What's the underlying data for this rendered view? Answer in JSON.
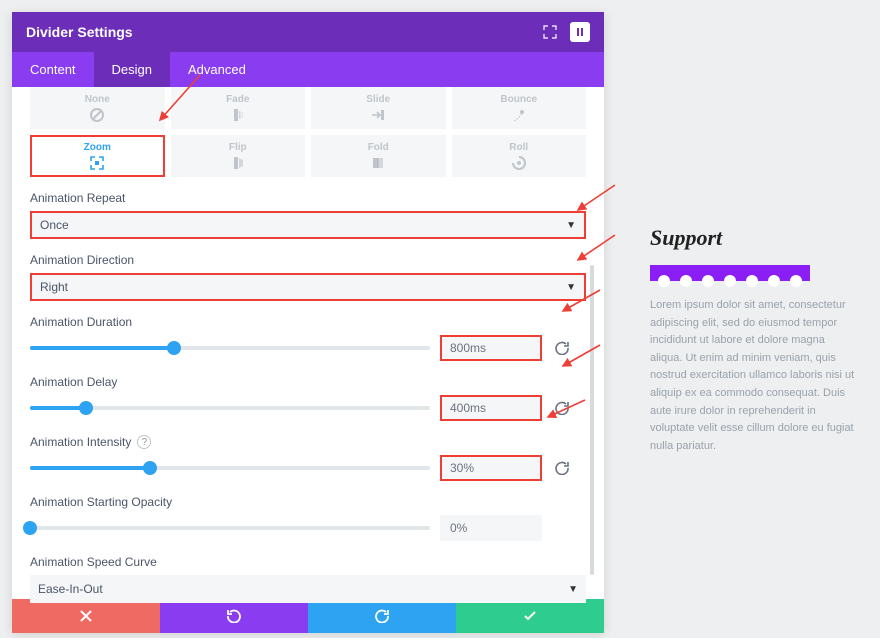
{
  "colors": {
    "panel_header_bg": "#6c2eb9",
    "tabs_bg": "#8a3df0",
    "highlight_border": "#ef3e36",
    "accent_blue": "#2ea3f2",
    "card_bg": "#f5f6f7",
    "muted_text": "#bfc5cb",
    "body_bg": "#edeff0",
    "footer_red": "#ef6a63",
    "footer_purple": "#8a3df0",
    "footer_blue": "#2ea3f2",
    "footer_green": "#2ecc8f",
    "divider_purple": "#8a1ef5"
  },
  "panel": {
    "title": "Divider Settings",
    "tabs": [
      "Content",
      "Design",
      "Advanced"
    ],
    "active_tab": "Design"
  },
  "animation_styles": {
    "row1": [
      {
        "key": "none",
        "label": "None"
      },
      {
        "key": "fade",
        "label": "Fade"
      },
      {
        "key": "slide",
        "label": "Slide"
      },
      {
        "key": "bounce",
        "label": "Bounce"
      }
    ],
    "row2": [
      {
        "key": "zoom",
        "label": "Zoom",
        "selected": true
      },
      {
        "key": "flip",
        "label": "Flip"
      },
      {
        "key": "fold",
        "label": "Fold"
      },
      {
        "key": "roll",
        "label": "Roll"
      }
    ]
  },
  "fields": {
    "repeat": {
      "label": "Animation Repeat",
      "value": "Once",
      "highlight": true
    },
    "direction": {
      "label": "Animation Direction",
      "value": "Right",
      "highlight": true
    },
    "duration": {
      "label": "Animation Duration",
      "value": "800ms",
      "percent": 36,
      "highlight": true
    },
    "delay": {
      "label": "Animation Delay",
      "value": "400ms",
      "percent": 14,
      "highlight": true
    },
    "intensity": {
      "label": "Animation Intensity",
      "value": "30%",
      "percent": 30,
      "highlight": true,
      "help": true
    },
    "opacity": {
      "label": "Animation Starting Opacity",
      "value": "0%",
      "percent": 0,
      "highlight": false
    },
    "speed_curve": {
      "label": "Animation Speed Curve",
      "value": "Ease-In-Out",
      "highlight": false
    }
  },
  "preview": {
    "title": "Support",
    "text": "Lorem ipsum dolor sit amet, consectetur adipiscing elit, sed do eiusmod tempor incididunt ut labore et dolore magna aliqua. Ut enim ad minim veniam, quis nostrud exercitation ullamco laboris nisi ut aliquip ex ea commodo consequat. Duis aute irure dolor in reprehenderit in voluptate velit esse cillum dolore eu fugiat nulla pariatur."
  }
}
